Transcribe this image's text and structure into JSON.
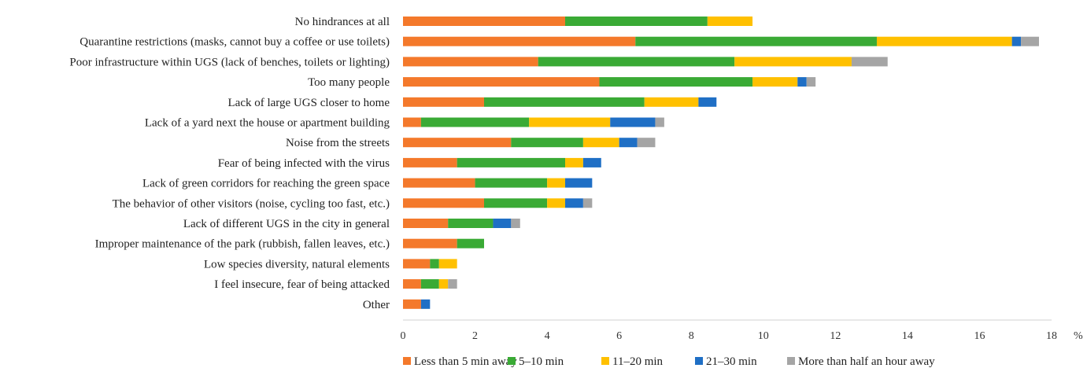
{
  "chart_data": {
    "type": "bar",
    "orientation": "horizontal",
    "stacked": true,
    "categories": [
      "No hindrances at all",
      "Quarantine restrictions (masks, cannot buy a coffee or use toilets)",
      "Poor infrastructure within UGS (lack of benches, toilets or lighting)",
      "Too many people",
      "Lack of large UGS closer to home",
      "Lack of a yard next the house or apartment building",
      "Noise from the streets",
      "Fear of being infected with the virus",
      "Lack of green corridors for reaching the green space",
      "The behavior of other visitors (noise, cycling too fast, etc.)",
      "Lack of different UGS in the city in general",
      "Improper maintenance of the park (rubbish, fallen leaves, etc.)",
      "Low species diversity, natural elements",
      "I feel insecure, fear of being attacked",
      "Other"
    ],
    "series": [
      {
        "name": "Less than 5 min away",
        "color": "#f4792b",
        "values": [
          4.5,
          6.45,
          3.75,
          5.45,
          2.25,
          0.5,
          3.0,
          1.5,
          2.0,
          2.25,
          1.25,
          1.5,
          0.75,
          0.5,
          0.5
        ]
      },
      {
        "name": "5–10 min",
        "color": "#3aaa35",
        "values": [
          3.95,
          6.7,
          5.45,
          4.25,
          4.45,
          3.0,
          2.0,
          3.0,
          2.0,
          1.75,
          1.25,
          0.75,
          0.25,
          0.5,
          0
        ]
      },
      {
        "name": "11–20 min",
        "color": "#ffc000",
        "values": [
          1.25,
          3.75,
          3.25,
          1.25,
          1.5,
          2.25,
          1.0,
          0.5,
          0.5,
          0.5,
          0,
          0,
          0.5,
          0.25,
          0
        ]
      },
      {
        "name": "21–30 min",
        "color": "#1f6fc5",
        "values": [
          0,
          0.25,
          0,
          0.25,
          0.5,
          1.25,
          0.5,
          0.5,
          0.75,
          0.5,
          0.5,
          0,
          0,
          0,
          0.25
        ]
      },
      {
        "name": "More than half an hour away",
        "color": "#a5a5a5",
        "values": [
          0,
          0.5,
          1.0,
          0.25,
          0,
          0.25,
          0.5,
          0,
          0,
          0.25,
          0.25,
          0,
          0,
          0.25,
          0
        ]
      }
    ],
    "xlim": [
      0,
      18
    ],
    "xticks": [
      0,
      2,
      4,
      6,
      8,
      10,
      12,
      14,
      16,
      18
    ],
    "x_unit": "%",
    "grid": false,
    "legend_position": "bottom"
  }
}
